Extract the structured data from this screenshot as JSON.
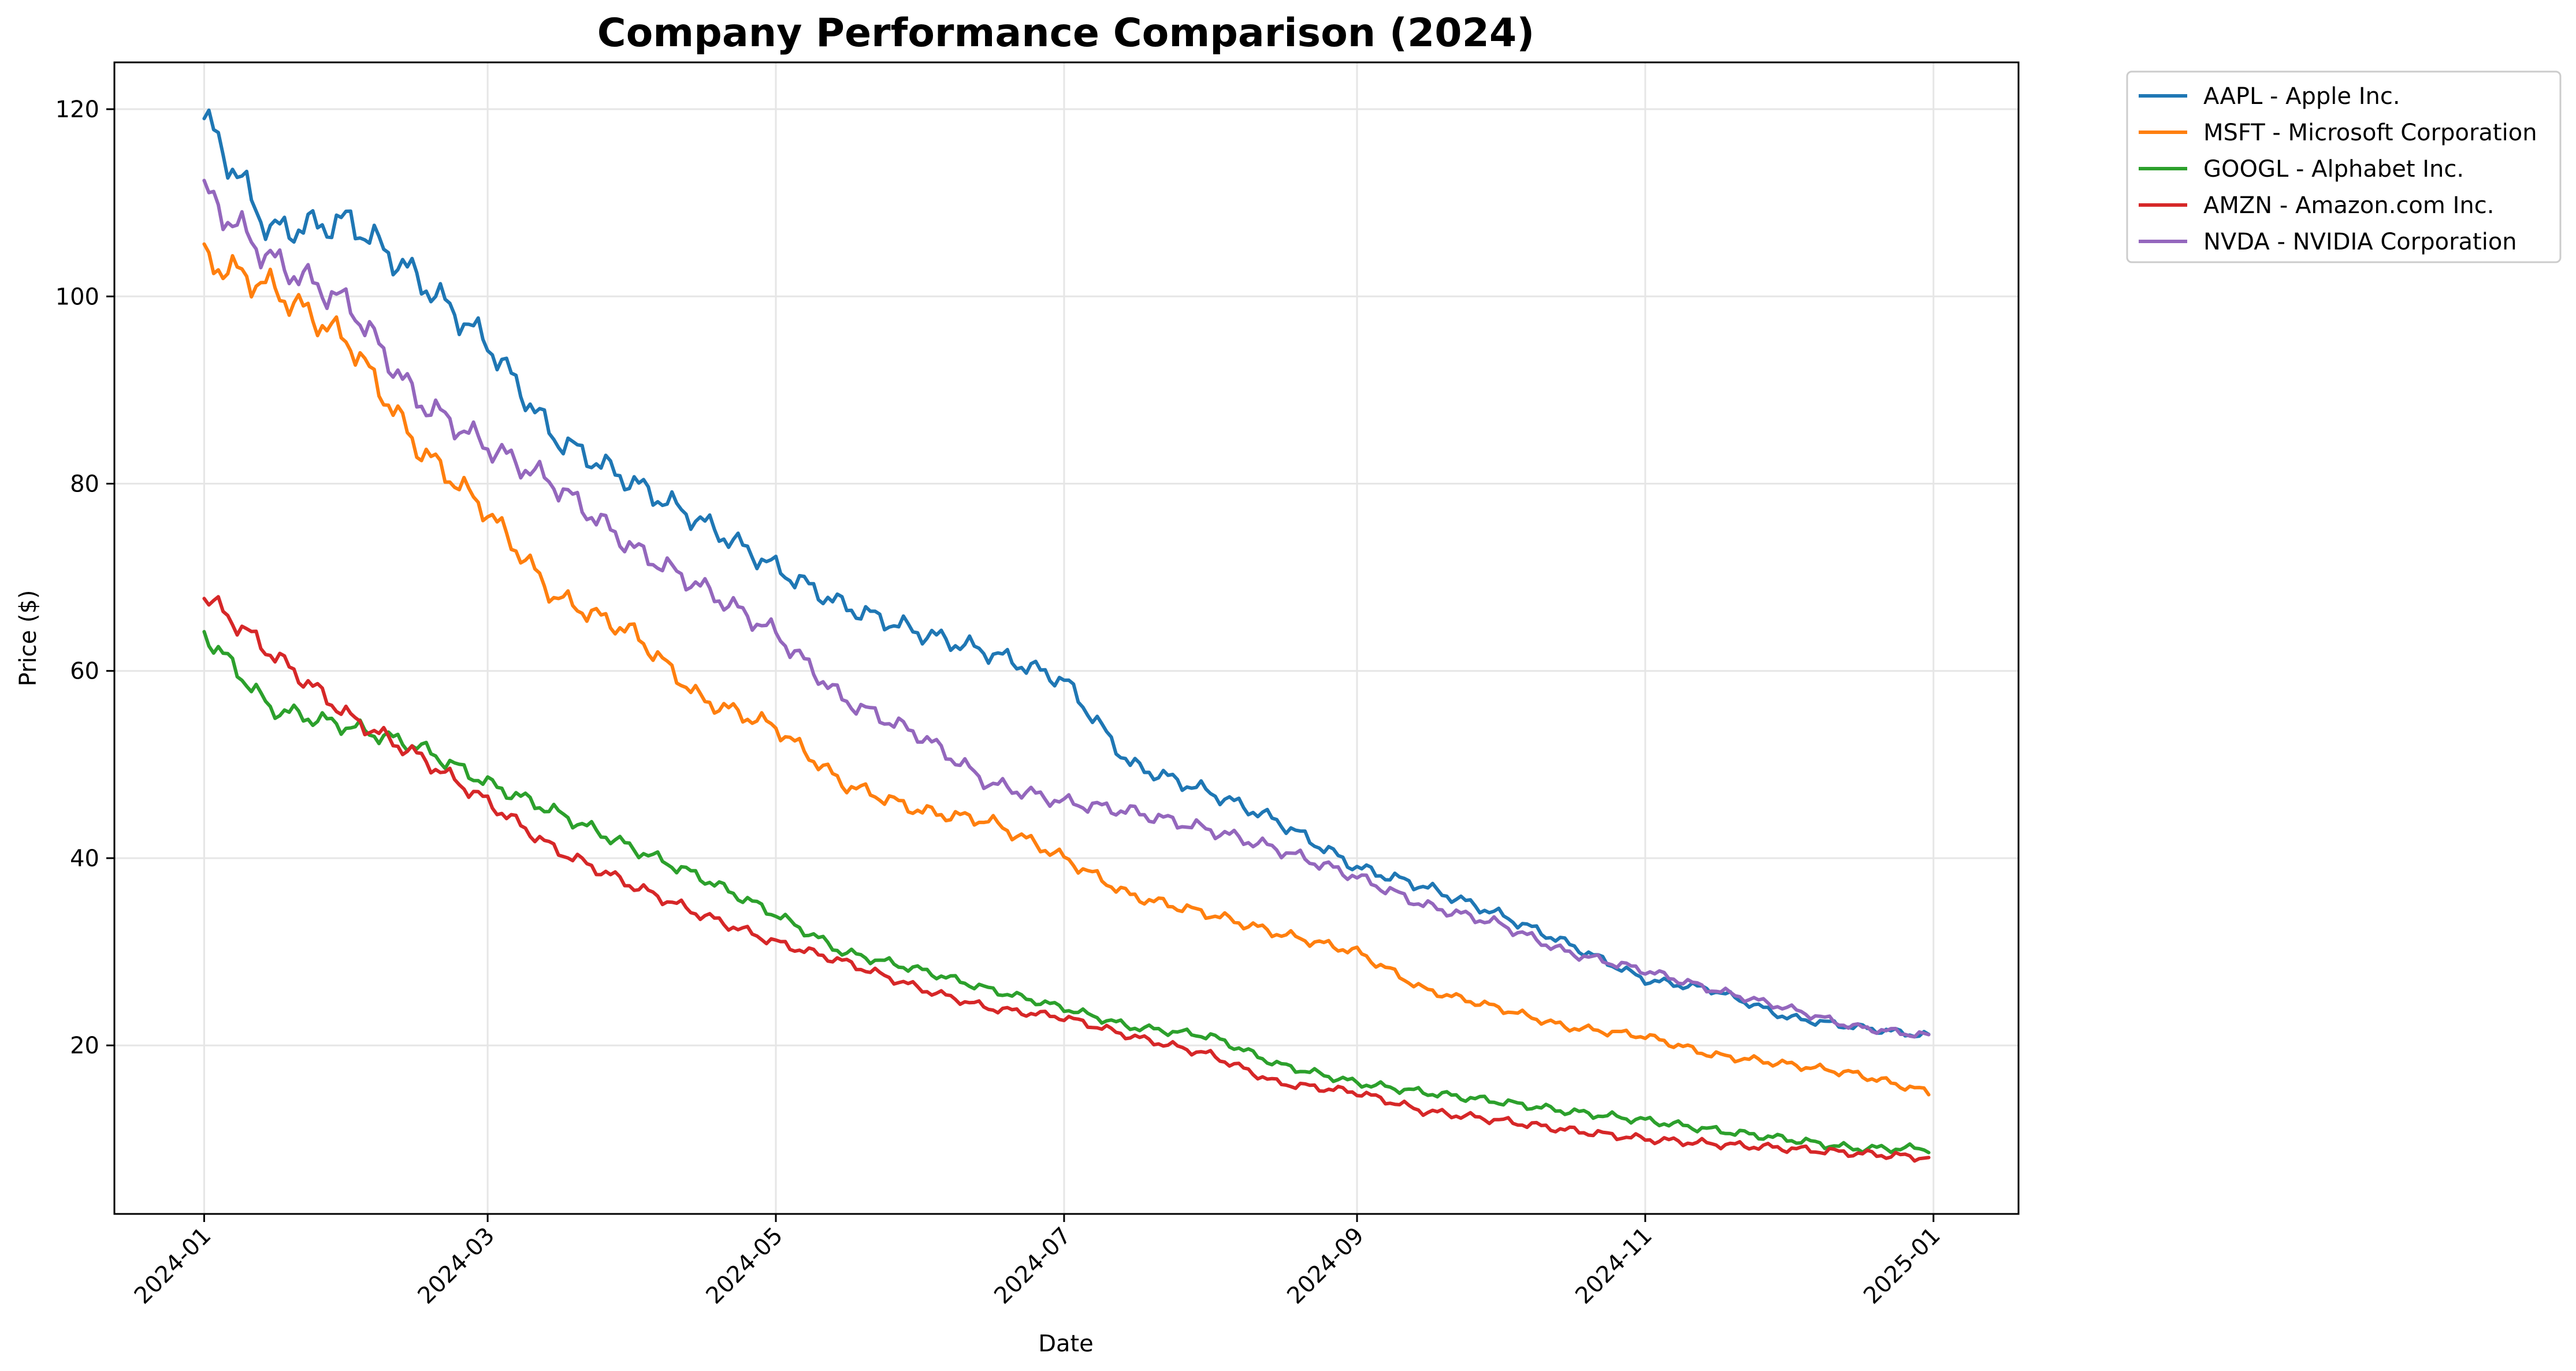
{
  "chart_data": {
    "type": "line",
    "title": "Company Performance Comparison (2024)",
    "xlabel": "Date",
    "ylabel": "Price ($)",
    "x_ticks": [
      "2024-01",
      "2024-03",
      "2024-05",
      "2024-07",
      "2024-09",
      "2024-11",
      "2025-01"
    ],
    "x_tick_dates": [
      "2024-01-01",
      "2024-03-01",
      "2024-05-01",
      "2024-07-01",
      "2024-09-01",
      "2024-11-01",
      "2025-01-01"
    ],
    "y_ticks": [
      20,
      40,
      60,
      80,
      100,
      120
    ],
    "xlim": [
      "2023-12-13",
      "2025-01-19"
    ],
    "ylim": [
      2,
      125
    ],
    "grid": true,
    "legend_position": "outside-top-right",
    "x": [
      "2024-01-01",
      "2024-01-15",
      "2024-02-01",
      "2024-02-15",
      "2024-03-01",
      "2024-03-15",
      "2024-04-01",
      "2024-04-15",
      "2024-05-01",
      "2024-05-15",
      "2024-06-01",
      "2024-06-15",
      "2024-07-01",
      "2024-07-15",
      "2024-08-01",
      "2024-08-15",
      "2024-09-01",
      "2024-09-15",
      "2024-10-01",
      "2024-10-15",
      "2024-11-01",
      "2024-11-15",
      "2024-12-01",
      "2024-12-15",
      "2024-12-31"
    ],
    "series": [
      {
        "name": "AAPL - Apple Inc.",
        "color": "#1f77b4",
        "values": [
          119,
          107,
          108,
          102,
          95,
          85,
          80,
          76,
          71,
          67,
          64,
          62,
          59,
          50,
          47,
          44,
          39,
          37,
          34,
          31,
          27,
          26,
          23,
          22,
          21
        ]
      },
      {
        "name": "MSFT - Microsoft Corporation",
        "color": "#ff7f0e",
        "values": [
          104,
          101,
          95,
          84,
          77,
          68,
          64,
          57,
          54,
          48,
          45,
          44,
          40,
          36,
          34,
          32,
          30,
          26,
          24,
          22,
          21,
          19,
          18,
          17,
          15
        ]
      },
      {
        "name": "GOOGL - Alphabet Inc.",
        "color": "#2ca02c",
        "values": [
          64,
          56,
          54,
          52,
          48,
          45,
          41,
          38,
          34,
          30,
          28,
          26,
          24,
          22,
          21,
          18,
          16,
          15,
          14,
          13,
          12,
          11,
          10,
          9,
          9
        ]
      },
      {
        "name": "AMZN - Amazon.com Inc.",
        "color": "#d62728",
        "values": [
          68,
          62,
          55,
          51,
          46,
          41,
          37,
          34,
          31,
          29,
          26,
          24,
          23,
          21,
          19,
          16,
          15,
          13,
          12,
          11,
          10,
          9.5,
          9,
          8.5,
          8
        ]
      },
      {
        "name": "NVDA - NVIDIA Corporation",
        "color": "#9467bd",
        "values": [
          111,
          104,
          99,
          89,
          84,
          80,
          73,
          69,
          64,
          57,
          53,
          48,
          46,
          45,
          43,
          41,
          38,
          35,
          33,
          30,
          28,
          26,
          24,
          22,
          21
        ]
      }
    ]
  }
}
